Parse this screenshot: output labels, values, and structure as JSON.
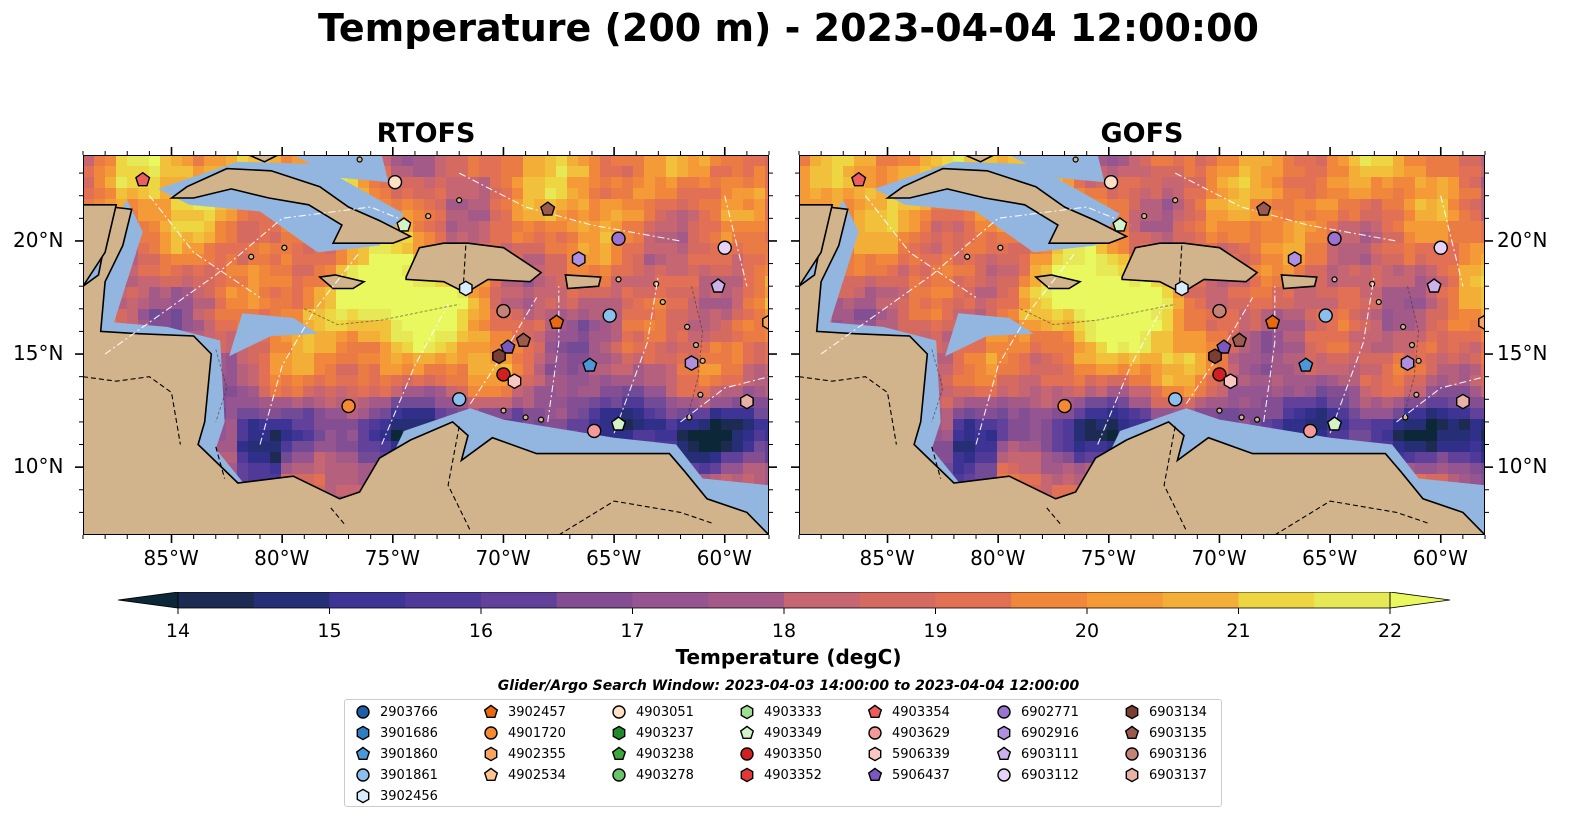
{
  "title": "Temperature (200 m) - 2023-04-04 12:00:00",
  "panels": [
    {
      "name": "RTOFS"
    },
    {
      "name": "GOFS"
    }
  ],
  "axes": {
    "lon_ticks": [
      "85°W",
      "80°W",
      "75°W",
      "70°W",
      "65°W",
      "60°W"
    ],
    "lat_ticks": [
      "20°N",
      "15°N",
      "10°N"
    ]
  },
  "colorbar": {
    "label": "Temperature (degC)",
    "ticks": [
      "14",
      "15",
      "16",
      "17",
      "18",
      "19",
      "20",
      "21",
      "22"
    ],
    "min": 14,
    "max": 22,
    "colors": [
      "#0c2737",
      "#1d2a52",
      "#262f75",
      "#302f89",
      "#3e3496",
      "#4f3a9a",
      "#614199",
      "#724b97",
      "#844f92",
      "#955590",
      "#a45a88",
      "#b5607d",
      "#c66672",
      "#d56b60",
      "#e27055",
      "#ea7b45",
      "#f1873a",
      "#f49a37",
      "#f3ae37",
      "#f2c13c",
      "#eed542",
      "#e6e855",
      "#e9f85f"
    ]
  },
  "search_window": "Glider/Argo Search Window: 2023-04-03 14:00:00 to 2023-04-04 12:00:00",
  "legend": [
    {
      "id": "2903766",
      "shape": "circle",
      "color": "#1f5fa8"
    },
    {
      "id": "3901686",
      "shape": "hexagon",
      "color": "#2e7dc0"
    },
    {
      "id": "3901860",
      "shape": "pentagon",
      "color": "#4d97d8"
    },
    {
      "id": "3901861",
      "shape": "circle",
      "color": "#8cc0ec"
    },
    {
      "id": "3902456",
      "shape": "hexagon",
      "color": "#d9ecfb"
    },
    {
      "id": "3902457",
      "shape": "pentagon",
      "color": "#e8690f"
    },
    {
      "id": "4901720",
      "shape": "circle",
      "color": "#f58a32"
    },
    {
      "id": "4902355",
      "shape": "hexagon",
      "color": "#f8a560"
    },
    {
      "id": "4902534",
      "shape": "pentagon",
      "color": "#fbc491"
    },
    {
      "id": "4903051",
      "shape": "circle",
      "color": "#fde0c5"
    },
    {
      "id": "4903237",
      "shape": "hexagon",
      "color": "#208a2a"
    },
    {
      "id": "4903238",
      "shape": "pentagon",
      "color": "#3aa83a"
    },
    {
      "id": "4903278",
      "shape": "circle",
      "color": "#6bc46b"
    },
    {
      "id": "4903333",
      "shape": "hexagon",
      "color": "#9ede90"
    },
    {
      "id": "4903349",
      "shape": "pentagon",
      "color": "#d2f2c8"
    },
    {
      "id": "4903350",
      "shape": "circle",
      "color": "#d21f1f"
    },
    {
      "id": "4903352",
      "shape": "hexagon",
      "color": "#e23838"
    },
    {
      "id": "4903354",
      "shape": "pentagon",
      "color": "#ee5c5c"
    },
    {
      "id": "4903629",
      "shape": "circle",
      "color": "#f59898"
    },
    {
      "id": "5906339",
      "shape": "hexagon",
      "color": "#f9c6c2"
    },
    {
      "id": "5906437",
      "shape": "pentagon",
      "color": "#7b58c0"
    },
    {
      "id": "6902771",
      "shape": "circle",
      "color": "#9a72d0"
    },
    {
      "id": "6902916",
      "shape": "hexagon",
      "color": "#b18fe0"
    },
    {
      "id": "6903111",
      "shape": "pentagon",
      "color": "#cbb2ec"
    },
    {
      "id": "6903112",
      "shape": "circle",
      "color": "#e6d4f8"
    },
    {
      "id": "6903134",
      "shape": "hexagon",
      "color": "#7a3e33"
    },
    {
      "id": "6903135",
      "shape": "pentagon",
      "color": "#9a5a4d"
    },
    {
      "id": "6903136",
      "shape": "circle",
      "color": "#c48377"
    },
    {
      "id": "6903137",
      "shape": "hexagon",
      "color": "#e9b1a6"
    }
  ],
  "markers": [
    {
      "id": "4903354",
      "lon": -86.3,
      "lat": 22.7
    },
    {
      "id": "4903051",
      "lon": -74.9,
      "lat": 22.6
    },
    {
      "id": "4903349",
      "lon": -74.5,
      "lat": 20.7
    },
    {
      "id": "6903135",
      "lon": -68.0,
      "lat": 21.4
    },
    {
      "id": "6902771",
      "lon": -64.8,
      "lat": 20.1
    },
    {
      "id": "6903112",
      "lon": -60.0,
      "lat": 19.7
    },
    {
      "id": "6902916",
      "lon": -66.6,
      "lat": 19.2
    },
    {
      "id": "6903111",
      "lon": -60.3,
      "lat": 18.0
    },
    {
      "id": "3902456",
      "lon": -71.7,
      "lat": 17.9
    },
    {
      "id": "6903136",
      "lon": -70.0,
      "lat": 16.9
    },
    {
      "id": "3901861",
      "lon": -65.2,
      "lat": 16.7
    },
    {
      "id": "3902457",
      "lon": -67.6,
      "lat": 16.4
    },
    {
      "id": "4902355",
      "lon": -58.0,
      "lat": 16.4
    },
    {
      "id": "6903135",
      "lon": -69.1,
      "lat": 15.6
    },
    {
      "id": "5906437",
      "lon": -69.8,
      "lat": 15.3
    },
    {
      "id": "6903134",
      "lon": -70.2,
      "lat": 14.9
    },
    {
      "id": "6902916",
      "lon": -61.5,
      "lat": 14.6
    },
    {
      "id": "3901860",
      "lon": -66.1,
      "lat": 14.5
    },
    {
      "id": "4903350",
      "lon": -70.0,
      "lat": 14.1
    },
    {
      "id": "5906339",
      "lon": -69.5,
      "lat": 13.8
    },
    {
      "id": "3901861",
      "lon": -72.0,
      "lat": 13.0
    },
    {
      "id": "4901720",
      "lon": -77.0,
      "lat": 12.7
    },
    {
      "id": "6903137",
      "lon": -59.0,
      "lat": 12.9
    },
    {
      "id": "4903349",
      "lon": -64.8,
      "lat": 11.9
    },
    {
      "id": "4903629",
      "lon": -65.9,
      "lat": 11.6
    }
  ]
}
